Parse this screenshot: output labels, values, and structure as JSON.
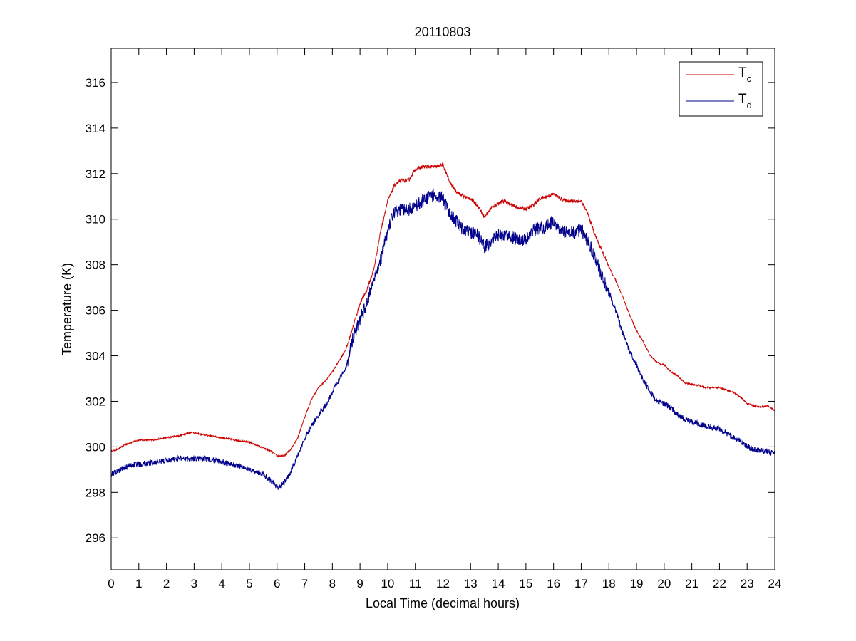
{
  "chart_data": {
    "type": "line",
    "title": "20110803",
    "xlabel": "Local Time (decimal hours)",
    "ylabel": "Temperature (K)",
    "xlim": [
      0,
      24
    ],
    "ylim": [
      294.6,
      317.5
    ],
    "xticks": [
      0,
      1,
      2,
      3,
      4,
      5,
      6,
      7,
      8,
      9,
      10,
      11,
      12,
      13,
      14,
      15,
      16,
      17,
      18,
      19,
      20,
      21,
      22,
      23,
      24
    ],
    "yticks": [
      296,
      298,
      300,
      302,
      304,
      306,
      308,
      310,
      312,
      314,
      316
    ],
    "grid": false,
    "legend_position": "top-right",
    "series": [
      {
        "name": "T",
        "name_sub": "c",
        "color": "#cc0000",
        "noise": 0.05,
        "x": [
          0,
          0.25,
          0.5,
          0.75,
          1,
          1.5,
          2,
          2.5,
          2.9,
          3.25,
          3.5,
          4,
          4.5,
          5,
          5.5,
          5.8,
          6,
          6.25,
          6.5,
          6.75,
          7,
          7.25,
          7.5,
          7.75,
          8,
          8.25,
          8.5,
          8.75,
          9,
          9.25,
          9.5,
          9.75,
          10,
          10.25,
          10.5,
          10.75,
          11,
          11.25,
          11.5,
          11.75,
          12,
          12.25,
          12.5,
          12.75,
          13,
          13.25,
          13.5,
          13.75,
          14,
          14.25,
          14.5,
          14.75,
          15,
          15.25,
          15.5,
          15.75,
          16,
          16.25,
          16.5,
          16.75,
          17,
          17.25,
          17.5,
          17.75,
          18,
          18.25,
          18.5,
          18.75,
          19,
          19.25,
          19.5,
          19.75,
          20,
          20.25,
          20.5,
          20.75,
          21,
          21.25,
          21.5,
          21.75,
          22,
          22.25,
          22.5,
          22.75,
          23,
          23.25,
          23.5,
          23.75,
          24
        ],
        "y": [
          299.8,
          299.9,
          300.1,
          300.2,
          300.3,
          300.3,
          300.4,
          300.5,
          300.65,
          300.55,
          300.5,
          300.4,
          300.3,
          300.2,
          299.95,
          299.8,
          299.6,
          299.6,
          299.9,
          300.4,
          301.3,
          302.1,
          302.6,
          302.9,
          303.3,
          303.8,
          304.3,
          305.3,
          306.3,
          306.9,
          307.8,
          309.5,
          310.8,
          311.5,
          311.7,
          311.7,
          312.2,
          312.3,
          312.3,
          312.3,
          312.4,
          311.6,
          311.2,
          311.0,
          310.9,
          310.6,
          310.1,
          310.5,
          310.7,
          310.8,
          310.6,
          310.5,
          310.45,
          310.6,
          310.9,
          311.0,
          311.1,
          310.9,
          310.8,
          310.8,
          310.8,
          310.2,
          309.3,
          308.6,
          307.9,
          307.3,
          306.6,
          305.8,
          305.1,
          304.6,
          304.0,
          303.7,
          303.6,
          303.3,
          303.1,
          302.8,
          302.75,
          302.7,
          302.6,
          302.6,
          302.6,
          302.5,
          302.4,
          302.2,
          301.9,
          301.8,
          301.75,
          301.8,
          301.6
        ]
      },
      {
        "name": "T",
        "name_sub": "d",
        "color": "#00008b",
        "noise": 0.18,
        "x": [
          0,
          0.25,
          0.5,
          0.75,
          1,
          1.5,
          2,
          2.5,
          2.9,
          3.25,
          3.5,
          4,
          4.5,
          5,
          5.5,
          5.8,
          6,
          6.25,
          6.5,
          6.75,
          7,
          7.25,
          7.5,
          7.75,
          8,
          8.25,
          8.5,
          8.75,
          9,
          9.25,
          9.5,
          9.75,
          10,
          10.25,
          10.5,
          10.75,
          11,
          11.25,
          11.5,
          11.75,
          12,
          12.25,
          12.5,
          12.75,
          13,
          13.25,
          13.5,
          13.75,
          14,
          14.25,
          14.5,
          14.75,
          15,
          15.25,
          15.5,
          15.75,
          16,
          16.25,
          16.5,
          16.75,
          17,
          17.25,
          17.5,
          17.75,
          18,
          18.25,
          18.5,
          18.75,
          19,
          19.25,
          19.5,
          19.75,
          20,
          20.25,
          20.5,
          20.75,
          21,
          21.25,
          21.5,
          21.75,
          22,
          22.25,
          22.5,
          22.75,
          23,
          23.25,
          23.5,
          23.75,
          24
        ],
        "y": [
          298.8,
          298.95,
          299.1,
          299.2,
          299.25,
          299.3,
          299.4,
          299.5,
          299.5,
          299.5,
          299.45,
          299.35,
          299.2,
          299.0,
          298.8,
          298.5,
          298.2,
          298.4,
          298.9,
          299.6,
          300.4,
          300.9,
          301.4,
          301.8,
          302.4,
          303.0,
          303.5,
          304.8,
          305.6,
          306.3,
          307.4,
          308.2,
          309.5,
          310.3,
          310.4,
          310.4,
          310.6,
          310.8,
          311.0,
          311.1,
          310.9,
          310.2,
          309.9,
          309.5,
          309.4,
          309.3,
          308.8,
          309.0,
          309.3,
          309.3,
          309.2,
          309.1,
          309.1,
          309.5,
          309.6,
          309.7,
          309.9,
          309.5,
          309.4,
          309.4,
          309.55,
          309.0,
          308.3,
          307.5,
          306.8,
          306.0,
          305.0,
          304.2,
          303.6,
          302.9,
          302.4,
          302.0,
          301.9,
          301.7,
          301.4,
          301.2,
          301.1,
          301.0,
          300.9,
          300.85,
          300.8,
          300.6,
          300.4,
          300.25,
          300.0,
          299.9,
          299.85,
          299.8,
          299.7
        ]
      }
    ]
  }
}
